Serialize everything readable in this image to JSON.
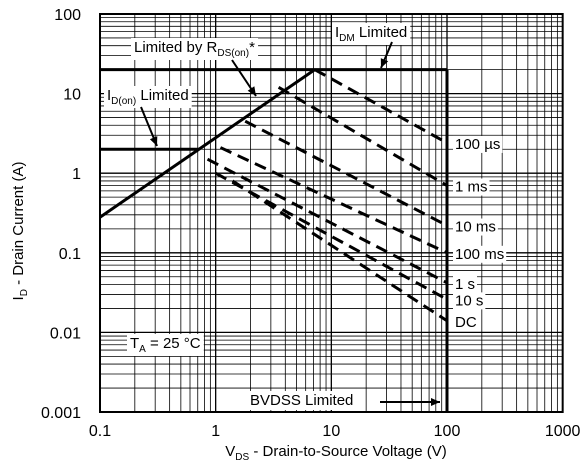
{
  "chart_data": {
    "type": "line",
    "x_scale": "log",
    "y_scale": "log",
    "xlim": [
      0.1,
      1000
    ],
    "ylim": [
      0.001,
      100
    ],
    "grid": true,
    "x_ticks": [
      "0.1",
      "1",
      "10",
      "100",
      "1000"
    ],
    "y_ticks": [
      "100",
      "10",
      "1",
      "0.1",
      "0.01",
      "0.001"
    ],
    "xlabel": {
      "main": "V",
      "sub": "DS",
      "rest": " - Drain-to-Source Voltage (V)"
    },
    "ylabel": {
      "main": "I",
      "sub": "D",
      "rest": " - Drain Current (A)"
    },
    "boundary": {
      "rds_on_limit": {
        "x": [
          0.1,
          7.2
        ],
        "y": [
          0.28,
          20
        ]
      },
      "idm_limit": {
        "x": [
          0.1,
          100
        ],
        "y": [
          20,
          20
        ]
      },
      "id_on_limit": {
        "x": [
          0.1,
          0.72
        ],
        "y": [
          2,
          2
        ]
      },
      "bvdss_limit": {
        "x": [
          100,
          100
        ],
        "y": [
          0.001,
          20
        ]
      }
    },
    "pulse_lines": [
      {
        "label": "100 µs",
        "x": [
          7.2,
          100
        ],
        "y": [
          20,
          2.4
        ]
      },
      {
        "label": "1 ms",
        "x": [
          3.5,
          100
        ],
        "y": [
          12,
          0.7
        ]
      },
      {
        "label": "10 ms",
        "x": [
          1.8,
          100
        ],
        "y": [
          4.5,
          0.22
        ]
      },
      {
        "label": "100 ms",
        "x": [
          1.1,
          100
        ],
        "y": [
          2.1,
          0.1
        ]
      },
      {
        "label": "1 s",
        "x": [
          0.85,
          100
        ],
        "y": [
          1.5,
          0.042
        ]
      },
      {
        "label": "10 s",
        "x": [
          1.0,
          100
        ],
        "y": [
          1.0,
          0.026
        ]
      },
      {
        "label": "DC",
        "x": [
          1.4,
          100
        ],
        "y": [
          0.8,
          0.014
        ]
      }
    ],
    "annotations": {
      "rds_on": {
        "text": "Limited by R",
        "sub": "DS(on)",
        "suffix": "*"
      },
      "idm": {
        "text_main": "I",
        "sub": "DM",
        "text_rest": " Limited"
      },
      "id_on": {
        "text_main": "I",
        "sub": "D(on)",
        "text_rest": " Limited"
      },
      "bvdss": "BVDSS Limited",
      "ta": {
        "text_main": "T",
        "sub": "A",
        "text_rest": " = 25 °C"
      }
    }
  }
}
